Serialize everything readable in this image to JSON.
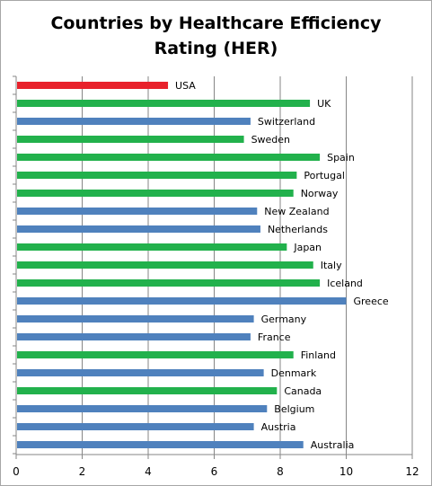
{
  "chart_data": {
    "type": "bar",
    "orientation": "horizontal",
    "title_lines": [
      "Countries by Healthcare Efficiency",
      "Rating (HER)"
    ],
    "xlabel": "",
    "ylabel": "",
    "xlim": [
      0,
      12
    ],
    "x_ticks": [
      0,
      2,
      4,
      6,
      8,
      10,
      12
    ],
    "grid": true,
    "legend": "none",
    "bars": [
      {
        "label": "USA",
        "value": 4.6,
        "color": "#e8212b"
      },
      {
        "label": "UK",
        "value": 8.9,
        "color": "#22b14c"
      },
      {
        "label": "Switzerland",
        "value": 7.1,
        "color": "#4f81bd"
      },
      {
        "label": "Sweden",
        "value": 6.9,
        "color": "#22b14c"
      },
      {
        "label": "Spain",
        "value": 9.2,
        "color": "#22b14c"
      },
      {
        "label": "Portugal",
        "value": 8.5,
        "color": "#22b14c"
      },
      {
        "label": "Norway",
        "value": 8.4,
        "color": "#22b14c"
      },
      {
        "label": "New Zealand",
        "value": 7.3,
        "color": "#4f81bd"
      },
      {
        "label": "Netherlands",
        "value": 7.4,
        "color": "#4f81bd"
      },
      {
        "label": "Japan",
        "value": 8.2,
        "color": "#22b14c"
      },
      {
        "label": "Italy",
        "value": 9.0,
        "color": "#22b14c"
      },
      {
        "label": "Iceland",
        "value": 9.2,
        "color": "#22b14c"
      },
      {
        "label": "Greece",
        "value": 10.0,
        "color": "#4f81bd"
      },
      {
        "label": "Germany",
        "value": 7.2,
        "color": "#4f81bd"
      },
      {
        "label": "France",
        "value": 7.1,
        "color": "#4f81bd"
      },
      {
        "label": "Finland",
        "value": 8.4,
        "color": "#22b14c"
      },
      {
        "label": "Denmark",
        "value": 7.5,
        "color": "#4f81bd"
      },
      {
        "label": "Canada",
        "value": 7.9,
        "color": "#22b14c"
      },
      {
        "label": "Belgium",
        "value": 7.6,
        "color": "#4f81bd"
      },
      {
        "label": "Austria",
        "value": 7.2,
        "color": "#4f81bd"
      },
      {
        "label": "Australia",
        "value": 8.7,
        "color": "#4f81bd"
      }
    ],
    "colors": {
      "grid": "#868686",
      "axis": "#868686",
      "tick_text": "#000000",
      "label_text": "#000000"
    }
  }
}
